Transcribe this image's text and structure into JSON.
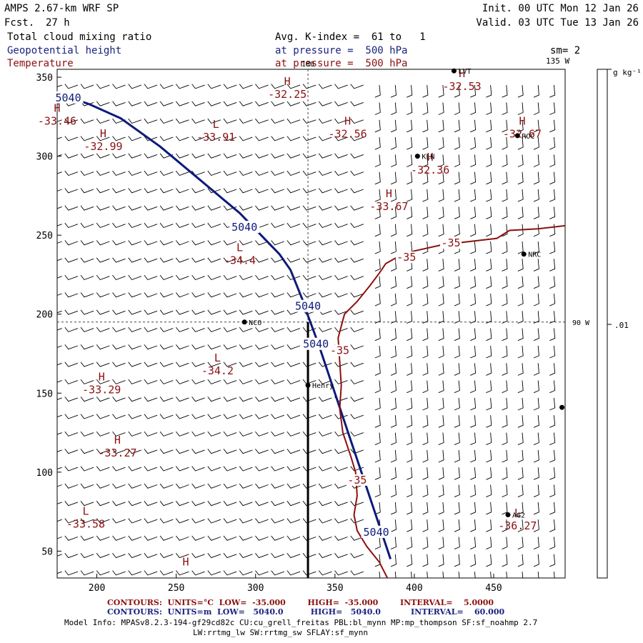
{
  "header": {
    "title": "AMPS 2.67-km WRF SP",
    "fcst_label": "Fcst.",
    "fcst_value": "27 h",
    "init": "Init. 00 UTC Mon 12 Jan 26",
    "valid": "Valid. 03 UTC Tue 13 Jan 26",
    "field1": "Total cloud mixing ratio",
    "field2": "Geopotential height",
    "field3": "Temperature",
    "avg": "Avg. K-index =  61 to   1",
    "pres2": "at pressure =  500 hPa",
    "pres3": "at pressure =  500 hPa",
    "smooth": "sm= 2"
  },
  "colorbar": {
    "unit": "g kg⁻¹",
    "tick": ".01"
  },
  "footer": {
    "red_line": "CONTOURS:  UNITS=°C  LOW=  -35.000        HIGH=  -35.000        INTERVAL=    5.0000",
    "blue_line": "CONTOURS:  UNITS=m  LOW=   5040.0          HIGH=   5040.0           INTERVAL=    60.000",
    "model1": "Model Info: MPASv8.2.3-194-gf29cd82c CU:cu_grell_freitas PBL:bl_mynn MP:mp_thompson SF:sf_noahmp 2.7",
    "model2": "LW:rrtmg_lw SW:rrtmg_sw SFLAY:sf_mynn"
  },
  "colors": {
    "height_contour": "#0d1a7a",
    "temp_contour": "#8b1010",
    "barb": "#000000"
  },
  "chart_data": {
    "type": "map",
    "xlim": [
      175,
      495
    ],
    "ylim": [
      33,
      355
    ],
    "xticks": [
      200,
      250,
      300,
      350,
      400,
      450
    ],
    "yticks": [
      50,
      100,
      150,
      200,
      250,
      300,
      350
    ],
    "grid_lines": [
      {
        "orient": "v",
        "x": 333,
        "label": "180"
      },
      {
        "orient": "h",
        "y": 195,
        "label": "90 W"
      }
    ],
    "corner_label": "135 W",
    "section_line": {
      "x": 333,
      "y_from": 33,
      "y_to": 195
    },
    "geopotential_height": [
      {
        "level": 5040,
        "label": "5040",
        "points": [
          [
            175,
            340
          ],
          [
            195,
            333
          ],
          [
            215,
            324
          ],
          [
            240,
            306
          ],
          [
            265,
            285
          ],
          [
            290,
            264
          ],
          [
            315,
            238
          ],
          [
            322,
            228
          ],
          [
            330,
            208
          ],
          [
            333,
            199
          ],
          [
            340,
            180
          ],
          [
            350,
            150
          ],
          [
            360,
            120
          ],
          [
            370,
            90
          ],
          [
            380,
            60
          ],
          [
            385,
            45
          ]
        ],
        "labels_at": [
          [
            182,
            337
          ],
          [
            293,
            255
          ],
          [
            333,
            205
          ],
          [
            338,
            181
          ],
          [
            376,
            62
          ]
        ]
      }
    ],
    "temperature": [
      {
        "level": -35,
        "label": "-35",
        "points": [
          [
            383,
            33
          ],
          [
            378,
            43
          ],
          [
            370,
            53
          ],
          [
            364,
            63
          ],
          [
            362,
            73
          ],
          [
            364,
            85
          ],
          [
            363,
            100
          ],
          [
            360,
            110
          ],
          [
            355,
            125
          ],
          [
            353,
            140
          ],
          [
            354,
            155
          ],
          [
            353,
            170
          ],
          [
            352,
            185
          ],
          [
            356,
            200
          ],
          [
            364,
            208
          ],
          [
            372,
            218
          ],
          [
            378,
            226
          ],
          [
            382,
            232
          ],
          [
            389,
            236
          ],
          [
            400,
            240
          ],
          [
            418,
            244
          ],
          [
            435,
            246
          ],
          [
            452,
            248
          ],
          [
            460,
            253
          ],
          [
            478,
            254
          ],
          [
            495,
            256
          ]
        ],
        "labels_at": [
          [
            353,
            177
          ],
          [
            364,
            95
          ],
          [
            395,
            236
          ],
          [
            423,
            245
          ]
        ]
      }
    ],
    "extrema": [
      {
        "kind": "H",
        "value": "-32.25",
        "x": 320,
        "y": 345
      },
      {
        "kind": "H",
        "value": "-33.46",
        "x": 175,
        "y": 328
      },
      {
        "kind": "H",
        "value": "-32.99",
        "x": 204,
        "y": 312
      },
      {
        "kind": "L",
        "value": "-33.91",
        "x": 275,
        "y": 318
      },
      {
        "kind": "H",
        "value": "-32.56",
        "x": 358,
        "y": 320
      },
      {
        "kind": "H",
        "value": "-32.67",
        "x": 468,
        "y": 320
      },
      {
        "kind": "H",
        "value": "-32.53",
        "x": 430,
        "y": 350
      },
      {
        "kind": "H",
        "value": "-32.36",
        "x": 410,
        "y": 297
      },
      {
        "kind": "H",
        "value": "-33.67",
        "x": 384,
        "y": 274
      },
      {
        "kind": "L",
        "value": "-34.4",
        "x": 290,
        "y": 240
      },
      {
        "kind": "L",
        "value": "-34.2",
        "x": 276,
        "y": 170
      },
      {
        "kind": "H",
        "value": "-33.29",
        "x": 203,
        "y": 158
      },
      {
        "kind": "H",
        "value": "-33.27",
        "x": 213,
        "y": 118
      },
      {
        "kind": "L",
        "value": "-33.58",
        "x": 193,
        "y": 73
      },
      {
        "kind": "L",
        "value": "-36.27",
        "x": 465,
        "y": 72
      },
      {
        "kind": "H",
        "value": "",
        "x": 256,
        "y": 41
      }
    ],
    "stations": [
      {
        "name": "NCO",
        "x": 293,
        "y": 195
      },
      {
        "name": "Henry",
        "x": 333,
        "y": 155
      },
      {
        "name": "KLN",
        "x": 402,
        "y": 300
      },
      {
        "name": "ROC",
        "x": 465,
        "y": 313
      },
      {
        "name": "NRC",
        "x": 469,
        "y": 238
      },
      {
        "name": "AG2",
        "x": 459,
        "y": 73
      },
      {
        "name": "LVT",
        "x": 425,
        "y": 354
      },
      {
        "name": "",
        "x": 493,
        "y": 141
      }
    ],
    "wind_barbs": {
      "x_spacing": 10,
      "y_spacing": 11,
      "west_flow_direction_deg": 250,
      "east_flow_direction_deg": 175,
      "speed_kt": 10,
      "transition_x": 375
    }
  }
}
